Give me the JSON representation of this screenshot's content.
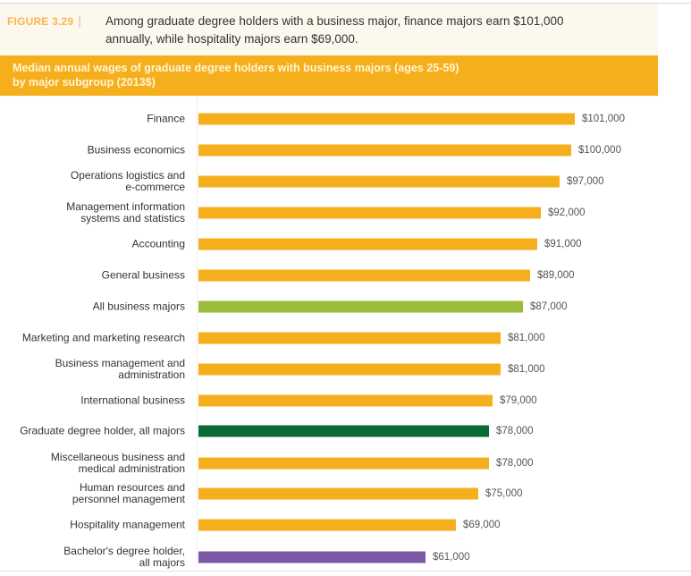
{
  "figure": {
    "label": "FIGURE 3.29",
    "separator": "|",
    "caption_line1": "Among graduate degree holders with a business major, finance majors earn $101,000",
    "caption_line2": "annually, while hospitality majors earn $69,000."
  },
  "band": {
    "title_line1": "Median annual wages of graduate degree holders with business majors (ages 25-59)",
    "title_line2": "by major subgroup (2013$)"
  },
  "colors": {
    "orange": "#f6af1c",
    "light_green": "#9bbb3b",
    "dark_green": "#0b6b36",
    "purple": "#7d58a6"
  },
  "chart_data": {
    "type": "bar",
    "orientation": "horizontal",
    "title": "Median annual wages of graduate degree holders with business majors (ages 25-59) by major subgroup (2013$)",
    "xlabel": "",
    "ylabel": "",
    "unit": "USD (2013$)",
    "xlim": [
      0,
      101000
    ],
    "grid": false,
    "legend": null,
    "categories": [
      "Finance",
      "Business economics",
      "Operations logistics and e-commerce",
      "Management information systems and statistics",
      "Accounting",
      "General business",
      "All business majors",
      "Marketing and marketing research",
      "Business management and administration",
      "International business",
      "Graduate degree holder, all majors",
      "Miscellaneous business and medical administration",
      "Human resources and personnel management",
      "Hospitality management",
      "Bachelor's degree holder, all majors"
    ],
    "values": [
      101000,
      100000,
      97000,
      92000,
      91000,
      89000,
      87000,
      81000,
      81000,
      79000,
      78000,
      78000,
      75000,
      69000,
      61000
    ],
    "value_labels": [
      "$101,000",
      "$100,000",
      "$97,000",
      "$92,000",
      "$91,000",
      "$89,000",
      "$87,000",
      "$81,000",
      "$81,000",
      "$79,000",
      "$78,000",
      "$78,000",
      "$75,000",
      "$69,000",
      "$61,000"
    ],
    "bar_colors": [
      "orange",
      "orange",
      "orange",
      "orange",
      "orange",
      "orange",
      "light_green",
      "orange",
      "orange",
      "orange",
      "dark_green",
      "orange",
      "orange",
      "orange",
      "purple"
    ]
  },
  "rows": [
    {
      "label_l1": "Finance",
      "label_l2": "",
      "value": 101000,
      "value_label": "$101,000",
      "color": "#f6af1c"
    },
    {
      "label_l1": "Business economics",
      "label_l2": "",
      "value": 100000,
      "value_label": "$100,000",
      "color": "#f6af1c"
    },
    {
      "label_l1": "Operations logistics and",
      "label_l2": "e-commerce",
      "value": 97000,
      "value_label": "$97,000",
      "color": "#f6af1c"
    },
    {
      "label_l1": "Management information",
      "label_l2": "systems and statistics",
      "value": 92000,
      "value_label": "$92,000",
      "color": "#f6af1c"
    },
    {
      "label_l1": "Accounting",
      "label_l2": "",
      "value": 91000,
      "value_label": "$91,000",
      "color": "#f6af1c"
    },
    {
      "label_l1": "General business",
      "label_l2": "",
      "value": 89000,
      "value_label": "$89,000",
      "color": "#f6af1c"
    },
    {
      "label_l1": "All business majors",
      "label_l2": "",
      "value": 87000,
      "value_label": "$87,000",
      "color": "#9bbb3b"
    },
    {
      "label_l1": "Marketing and marketing research",
      "label_l2": "",
      "value": 81000,
      "value_label": "$81,000",
      "color": "#f6af1c"
    },
    {
      "label_l1": "Business management and",
      "label_l2": "administration",
      "value": 81000,
      "value_label": "$81,000",
      "color": "#f6af1c"
    },
    {
      "label_l1": "International business",
      "label_l2": "",
      "value": 79000,
      "value_label": "$79,000",
      "color": "#f6af1c"
    },
    {
      "label_l1": "Graduate degree holder, all majors",
      "label_l2": "",
      "value": 78000,
      "value_label": "$78,000",
      "color": "#0b6b36"
    },
    {
      "label_l1": "Miscellaneous business and",
      "label_l2": "medical administration",
      "value": 78000,
      "value_label": "$78,000",
      "color": "#f6af1c"
    },
    {
      "label_l1": "Human resources and",
      "label_l2": "personnel management",
      "value": 75000,
      "value_label": "$75,000",
      "color": "#f6af1c"
    },
    {
      "label_l1": "Hospitality management",
      "label_l2": "",
      "value": 69000,
      "value_label": "$69,000",
      "color": "#f6af1c"
    },
    {
      "label_l1": "Bachelor's degree holder,",
      "label_l2": "all majors",
      "value": 61000,
      "value_label": "$61,000",
      "color": "#7d58a6"
    }
  ]
}
